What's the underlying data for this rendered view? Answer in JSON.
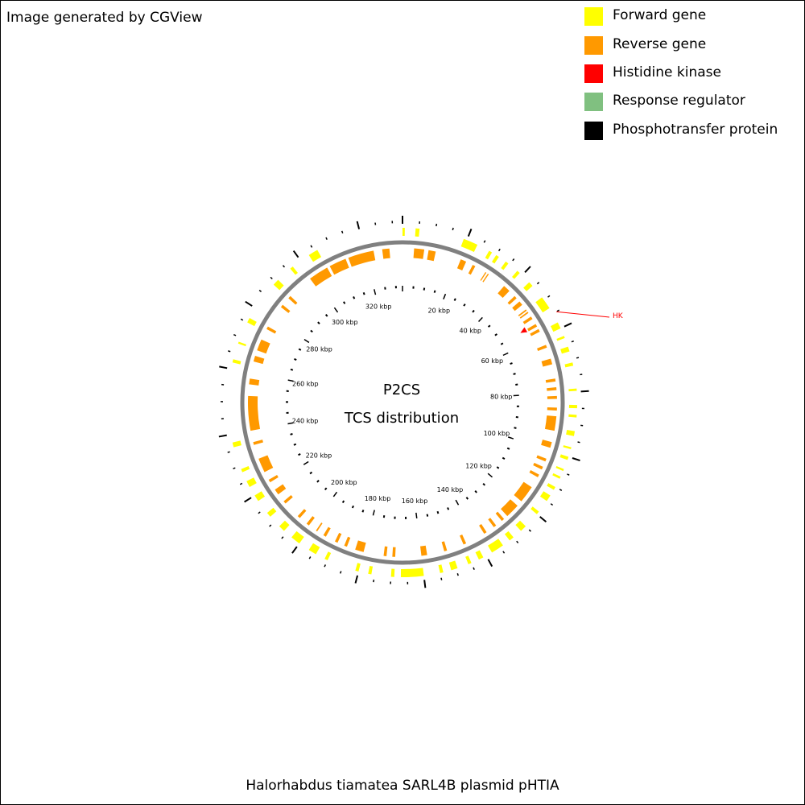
{
  "header": {
    "credit": "Image generated by CGView"
  },
  "legend": [
    {
      "label": "Forward gene",
      "color": "#ffff00"
    },
    {
      "label": "Reverse gene",
      "color": "#ff9900"
    },
    {
      "label": "Histidine kinase",
      "color": "#ff0000"
    },
    {
      "label": "Response regulator",
      "color": "#80c080"
    },
    {
      "label": "Phosphotransfer protein",
      "color": "#000000"
    }
  ],
  "map": {
    "center_line1": "P2CS",
    "center_line2": "TCS distribution",
    "genome_length_kbp": 333,
    "backbone_color": "#808080",
    "tick_labels": [
      "20 kbp",
      "40 kbp",
      "60 kbp",
      "80 kbp",
      "100 kbp",
      "120 kbp",
      "140 kbp",
      "160 kbp",
      "180 kbp",
      "200 kbp",
      "220 kbp",
      "240 kbp",
      "260 kbp",
      "280 kbp",
      "300 kbp",
      "320 kbp"
    ],
    "tick_positions_kbp": [
      20,
      40,
      60,
      80,
      100,
      120,
      140,
      160,
      180,
      200,
      220,
      240,
      260,
      280,
      300,
      320
    ],
    "forward_genes": [
      [
        0.0,
        0.7
      ],
      [
        4.0,
        5.2
      ],
      [
        19.0,
        23.5
      ],
      [
        27.5,
        28.5
      ],
      [
        30.0,
        31.0
      ],
      [
        33.5,
        34.5
      ],
      [
        38.0,
        39.0
      ],
      [
        43.0,
        44.5
      ],
      [
        49.0,
        53.0
      ],
      [
        58.0,
        60.0
      ],
      [
        62.5,
        63.2
      ],
      [
        66.0,
        67.5
      ],
      [
        71.0,
        72.0
      ],
      [
        79.0,
        79.7
      ],
      [
        84.0,
        85.0
      ],
      [
        87.0,
        87.8
      ],
      [
        92.0,
        93.5
      ],
      [
        97.0,
        97.6
      ],
      [
        100.0,
        101.0
      ],
      [
        104.0,
        104.6
      ],
      [
        106.5,
        107.2
      ],
      [
        110.0,
        111.0
      ],
      [
        113.0,
        115.0
      ],
      [
        119.0,
        120.0
      ],
      [
        125.0,
        127.0
      ],
      [
        130.0,
        131.5
      ],
      [
        134.0,
        138.0
      ],
      [
        141.0,
        142.5
      ],
      [
        145.0,
        146.0
      ],
      [
        149.5,
        151.5
      ],
      [
        154.0,
        155.0
      ],
      [
        160.0,
        167.0
      ],
      [
        169.0,
        170.0
      ],
      [
        176.0,
        177.0
      ],
      [
        180.0,
        181.0
      ],
      [
        190.0,
        191.0
      ],
      [
        194.0,
        196.5
      ],
      [
        200.0,
        203.0
      ],
      [
        206.0,
        208.0
      ],
      [
        212.0,
        213.5
      ],
      [
        218.0,
        220.0
      ],
      [
        223.0,
        225.0
      ],
      [
        228.0,
        229.0
      ],
      [
        236.0,
        237.5
      ],
      [
        262.0,
        263.0
      ],
      [
        268.0,
        268.6
      ],
      [
        275.0,
        276.5
      ],
      [
        289.0,
        291.0
      ],
      [
        296.0,
        297.0
      ],
      [
        303.0,
        306.0
      ]
    ],
    "reverse_genes": [
      [
        4.0,
        7.5
      ],
      [
        9.0,
        11.5
      ],
      [
        20.5,
        22.5
      ],
      [
        25.0,
        26.0
      ],
      [
        30.0,
        30.4
      ],
      [
        31.0,
        31.4
      ],
      [
        38.0,
        40.5
      ],
      [
        43.0,
        44.0
      ],
      [
        45.5,
        47.0
      ],
      [
        49.0,
        49.5
      ],
      [
        50.0,
        50.5
      ],
      [
        52.0,
        53.0
      ],
      [
        55.0,
        56.0
      ],
      [
        57.0,
        58.0
      ],
      [
        63.0,
        64.0
      ],
      [
        68.0,
        70.0
      ],
      [
        75.0,
        76.0
      ],
      [
        78.0,
        79.0
      ],
      [
        81.0,
        82.0
      ],
      [
        85.0,
        86.0
      ],
      [
        88.0,
        93.0
      ],
      [
        97.0,
        99.0
      ],
      [
        103.0,
        104.0
      ],
      [
        106.0,
        107.0
      ],
      [
        109.0,
        110.0
      ],
      [
        114.0,
        120.0
      ],
      [
        122.0,
        127.0
      ],
      [
        128.5,
        129.5
      ],
      [
        132.0,
        133.0
      ],
      [
        136.0,
        137.0
      ],
      [
        144.0,
        145.0
      ],
      [
        151.0,
        152.0
      ],
      [
        158.0,
        160.0
      ],
      [
        169.0,
        170.0
      ],
      [
        172.0,
        173.0
      ],
      [
        180.0,
        183.0
      ],
      [
        186.0,
        187.0
      ],
      [
        189.5,
        190.5
      ],
      [
        194.0,
        195.0
      ],
      [
        197.5,
        198.0
      ],
      [
        201.0,
        202.0
      ],
      [
        205.0,
        206.0
      ],
      [
        212.0,
        213.0
      ],
      [
        216.0,
        218.0
      ],
      [
        221.0,
        222.0
      ],
      [
        225.0,
        230.0
      ],
      [
        235.0,
        236.0
      ],
      [
        240.0,
        252.0
      ],
      [
        256.0,
        258.0
      ],
      [
        264.0,
        266.0
      ],
      [
        268.0,
        272.0
      ],
      [
        276.0,
        277.0
      ],
      [
        285.0,
        286.0
      ],
      [
        289.0,
        290.0
      ],
      [
        299.0,
        306.0
      ],
      [
        307.0,
        313.0
      ],
      [
        314.0,
        323.0
      ],
      [
        326.0,
        328.5
      ]
    ],
    "hk": {
      "position_kbp": 55.0,
      "label": "HK",
      "color": "#ff0000"
    }
  }
}
